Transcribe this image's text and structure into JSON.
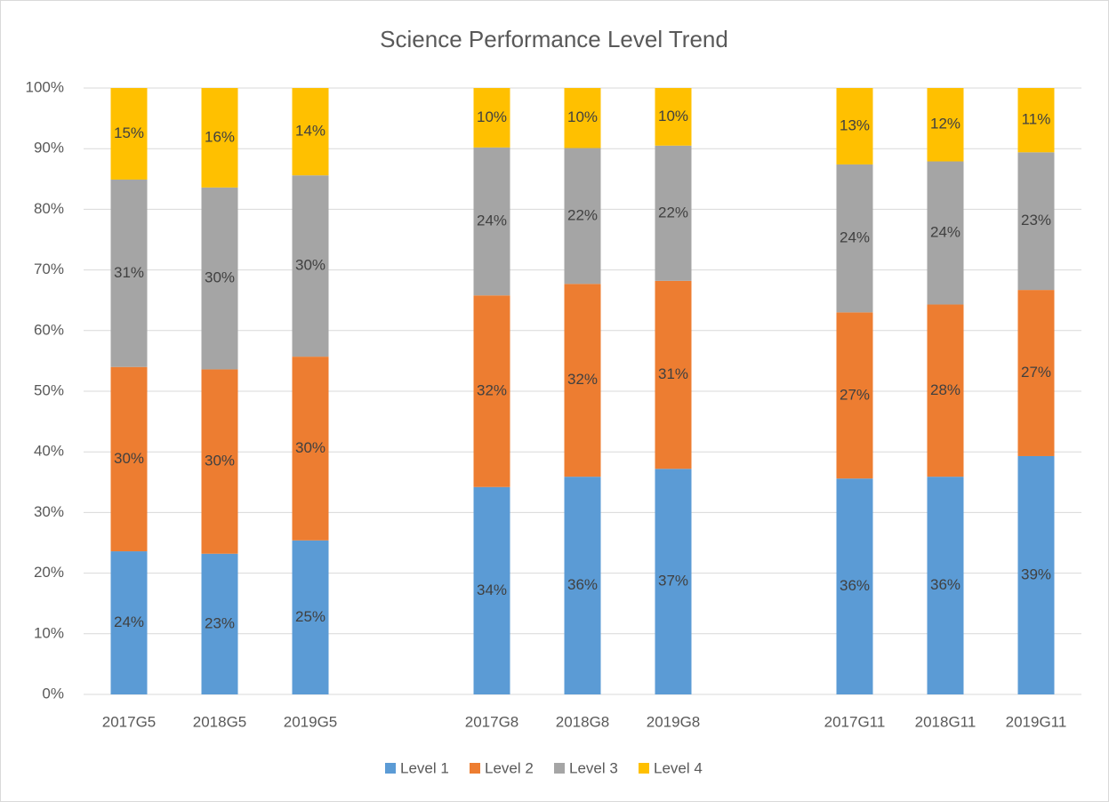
{
  "chart_data": {
    "type": "stacked_bar",
    "title": "Science Performance Level Trend",
    "categories": [
      "2017G5",
      "2018G5",
      "2019G5",
      null,
      "2017G8",
      "2018G8",
      "2019G8",
      null,
      "2017G11",
      "2018G11",
      "2019G11"
    ],
    "series": [
      {
        "name": "Level 1",
        "color": "#5b9bd5",
        "values": [
          23.6,
          23.2,
          25.4,
          null,
          34.2,
          35.9,
          37.2,
          null,
          35.6,
          35.9,
          39.3
        ],
        "value_labels": [
          "24%",
          "23%",
          "25%",
          null,
          "34%",
          "36%",
          "37%",
          null,
          "36%",
          "36%",
          "39%"
        ]
      },
      {
        "name": "Level 2",
        "color": "#ed7d31",
        "values": [
          30.4,
          30.4,
          30.3,
          null,
          31.6,
          31.8,
          31.0,
          null,
          27.4,
          28.4,
          27.4
        ],
        "value_labels": [
          "30%",
          "30%",
          "30%",
          null,
          "32%",
          "32%",
          "31%",
          null,
          "27%",
          "28%",
          "27%"
        ]
      },
      {
        "name": "Level 3",
        "color": "#a5a5a5",
        "values": [
          30.9,
          30.0,
          29.9,
          null,
          24.4,
          22.4,
          22.3,
          null,
          24.4,
          23.6,
          22.7
        ],
        "value_labels": [
          "31%",
          "30%",
          "30%",
          null,
          "24%",
          "22%",
          "22%",
          null,
          "24%",
          "24%",
          "23%"
        ]
      },
      {
        "name": "Level 4",
        "color": "#ffc000",
        "values": [
          15.1,
          16.4,
          14.4,
          null,
          9.8,
          9.9,
          9.5,
          null,
          12.6,
          12.1,
          10.6
        ],
        "value_labels": [
          "15%",
          "16%",
          "14%",
          null,
          "10%",
          "10%",
          "10%",
          null,
          "13%",
          "12%",
          "11%"
        ]
      }
    ],
    "ylim": [
      0,
      100
    ],
    "yticks": [
      {
        "value": 0,
        "label": "0%"
      },
      {
        "value": 10,
        "label": "10%"
      },
      {
        "value": 20,
        "label": "20%"
      },
      {
        "value": 30,
        "label": "30%"
      },
      {
        "value": 40,
        "label": "40%"
      },
      {
        "value": 50,
        "label": "50%"
      },
      {
        "value": 60,
        "label": "60%"
      },
      {
        "value": 70,
        "label": "70%"
      },
      {
        "value": 80,
        "label": "80%"
      },
      {
        "value": 90,
        "label": "90%"
      },
      {
        "value": 100,
        "label": "100%"
      }
    ],
    "grid": true,
    "legend": "bottom"
  }
}
